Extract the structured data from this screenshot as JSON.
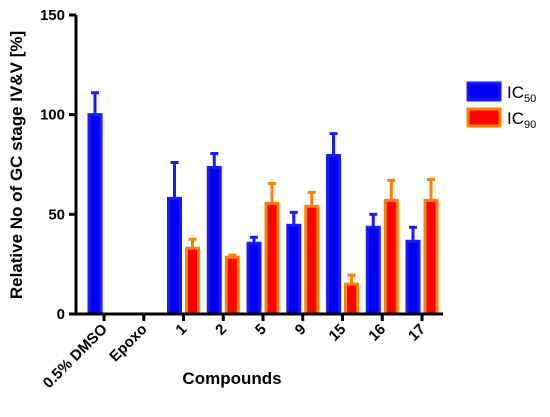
{
  "chart_data": {
    "type": "bar",
    "xlabel": "Compounds",
    "ylabel": "Relative No of GC stage IV&V [%]",
    "ylim": [
      0,
      150
    ],
    "yticks": [
      0,
      50,
      100,
      150
    ],
    "grid": false,
    "legend_position": "right",
    "categories": [
      "0.5% DMSO",
      "Epoxo",
      "1",
      "2",
      "5",
      "9",
      "15",
      "16",
      "17"
    ],
    "series": [
      {
        "name": "IC50",
        "legend_main": "IC",
        "legend_sub": "50",
        "color": "#0000ff",
        "edge_color": "#1a1aff",
        "values": [
          100,
          null,
          58,
          73.5,
          35.5,
          44.5,
          79.5,
          43.5,
          36.5
        ],
        "errors": [
          11,
          null,
          18,
          7,
          3,
          6.5,
          11,
          6.5,
          7
        ]
      },
      {
        "name": "IC90",
        "legend_main": "IC",
        "legend_sub": "90",
        "color": "#ff0000",
        "edge_color": "#ff7f00",
        "values": [
          null,
          null,
          33,
          28.5,
          55.5,
          54,
          15,
          57,
          57
        ],
        "errors": [
          null,
          null,
          4.5,
          1,
          10,
          7,
          4.5,
          10,
          10.5
        ]
      }
    ]
  }
}
